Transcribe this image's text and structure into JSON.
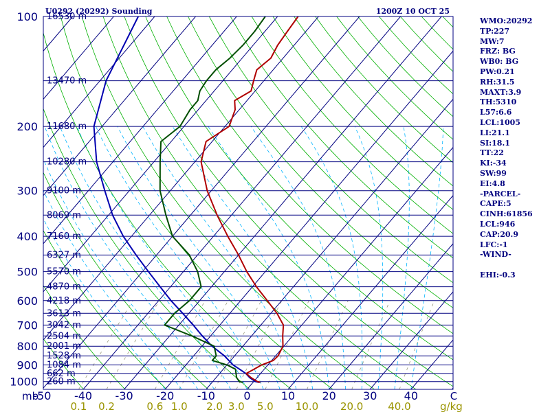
{
  "header": {
    "station": "U0292 (20292) Sounding",
    "time": "1200Z 10 OCT 25"
  },
  "colors": {
    "isobar": "#000080",
    "isotherm": "#000080",
    "dry_adiabat": "#00b000",
    "moist_adiabat": "#00b4ff",
    "mixing_ratio": "#9b9b7f",
    "temperature": "#b00000",
    "dewpoint": "#004d00",
    "parcel": "#0000b0",
    "axis_label": "#00007f",
    "bottom_label": "#9a9400"
  },
  "indices": [
    "WMO:20292",
    "TP:227",
    "MW:7",
    "FRZ: BG",
    "WB0: BG",
    "PW:0.21",
    "RH:31.5",
    "MAXT:3.9",
    "TH:5310",
    "L57:6.6",
    "LCL:1005",
    "LI:21.1",
    "SI:18.1",
    "TT:22",
    "KI:-34",
    "SW:99",
    "EI:4.8",
    "-PARCEL-",
    "CAPE:5",
    "CINH:61856",
    "LCL:946",
    "CAP:20.9",
    "LFC:-1",
    "-WIND-",
    "",
    "EHI:-0.3"
  ],
  "chart_data": {
    "type": "skew-t",
    "axis_unit_left": "mb",
    "pressure_ticks": [
      100,
      200,
      300,
      400,
      500,
      600,
      700,
      800,
      900,
      1000
    ],
    "temperature_ticks": [
      -50,
      -40,
      -30,
      -20,
      -10,
      0,
      10,
      20,
      30,
      40
    ],
    "temperature_unit_label": "C",
    "mixing_ratio_ticks": [
      "0.1",
      "0.2",
      "0.6",
      "1.0",
      "2.0",
      "3.0",
      "5.0",
      "10.0",
      "20.0",
      "40.0"
    ],
    "mixing_ratio_unit": "g/kg",
    "height_levels": [
      {
        "p": 100,
        "label": "16530 m"
      },
      {
        "p": 150,
        "label": "13470 m"
      },
      {
        "p": 200,
        "label": "11680 m"
      },
      {
        "p": 250,
        "label": "10280 m"
      },
      {
        "p": 300,
        "label": "9100 m"
      },
      {
        "p": 350,
        "label": "8069 m"
      },
      {
        "p": 400,
        "label": "7160 m"
      },
      {
        "p": 450,
        "label": "6327 m"
      },
      {
        "p": 500,
        "label": "5570 m"
      },
      {
        "p": 550,
        "label": "4870 m"
      },
      {
        "p": 600,
        "label": "4218 m"
      },
      {
        "p": 650,
        "label": "3613 m"
      },
      {
        "p": 700,
        "label": "3042 m"
      },
      {
        "p": 750,
        "label": "2504 m"
      },
      {
        "p": 800,
        "label": "2001 m"
      },
      {
        "p": 850,
        "label": "1528 m"
      },
      {
        "p": 900,
        "label": "1084 m"
      },
      {
        "p": 950,
        "label": "662 m"
      },
      {
        "p": 1000,
        "label": "260 m"
      }
    ],
    "temperature_profile": [
      [
        1005,
        1.8
      ],
      [
        1000,
        0.9
      ],
      [
        975,
        -1.5
      ],
      [
        950,
        -3.5
      ],
      [
        925,
        -2.5
      ],
      [
        900,
        -1.5
      ],
      [
        875,
        0.4
      ],
      [
        850,
        0.6
      ],
      [
        800,
        -0.2
      ],
      [
        750,
        -2.4
      ],
      [
        700,
        -4.5
      ],
      [
        650,
        -8.5
      ],
      [
        600,
        -13.5
      ],
      [
        550,
        -19.0
      ],
      [
        500,
        -24.5
      ],
      [
        450,
        -30.0
      ],
      [
        400,
        -36.5
      ],
      [
        350,
        -43.5
      ],
      [
        300,
        -51.0
      ],
      [
        250,
        -58.5
      ],
      [
        220,
        -61.5
      ],
      [
        200,
        -59.0
      ],
      [
        180,
        -61.0
      ],
      [
        170,
        -63.0
      ],
      [
        160,
        -61.0
      ],
      [
        150,
        -62.5
      ],
      [
        140,
        -64.0
      ],
      [
        130,
        -63.0
      ],
      [
        120,
        -64.0
      ],
      [
        110,
        -64.5
      ],
      [
        100,
        -65.0
      ]
    ],
    "dewpoint_profile": [
      [
        1005,
        -2.5
      ],
      [
        1000,
        -3.5
      ],
      [
        975,
        -5.0
      ],
      [
        950,
        -6.0
      ],
      [
        925,
        -7.0
      ],
      [
        900,
        -10.0
      ],
      [
        875,
        -14.5
      ],
      [
        850,
        -14.5
      ],
      [
        800,
        -17.0
      ],
      [
        750,
        -24.5
      ],
      [
        700,
        -33.5
      ],
      [
        650,
        -33.5
      ],
      [
        600,
        -32.5
      ],
      [
        550,
        -32.5
      ],
      [
        500,
        -36.5
      ],
      [
        450,
        -42.0
      ],
      [
        400,
        -50.0
      ],
      [
        350,
        -56.0
      ],
      [
        300,
        -62.5
      ],
      [
        250,
        -68.5
      ],
      [
        220,
        -72.5
      ],
      [
        200,
        -71.0
      ],
      [
        180,
        -72.0
      ],
      [
        170,
        -72.0
      ],
      [
        160,
        -73.5
      ],
      [
        150,
        -74.0
      ],
      [
        140,
        -74.0
      ],
      [
        130,
        -73.0
      ],
      [
        120,
        -72.5
      ],
      [
        110,
        -72.5
      ],
      [
        100,
        -73.0
      ]
    ],
    "parcel_profile": [
      [
        1005,
        1.5
      ],
      [
        1000,
        0.4
      ],
      [
        975,
        -1.8
      ],
      [
        950,
        -3.6
      ],
      [
        925,
        -6.0
      ],
      [
        900,
        -8.5
      ],
      [
        850,
        -12.5
      ],
      [
        800,
        -17.5
      ],
      [
        750,
        -22.0
      ],
      [
        700,
        -26.5
      ],
      [
        650,
        -31.5
      ],
      [
        600,
        -37.0
      ],
      [
        550,
        -42.5
      ],
      [
        500,
        -48.5
      ],
      [
        450,
        -55.0
      ],
      [
        400,
        -62.0
      ],
      [
        350,
        -69.0
      ],
      [
        300,
        -76.0
      ],
      [
        250,
        -84.0
      ],
      [
        200,
        -92.0
      ],
      [
        150,
        -98.5
      ],
      [
        100,
        -104.0
      ]
    ]
  }
}
